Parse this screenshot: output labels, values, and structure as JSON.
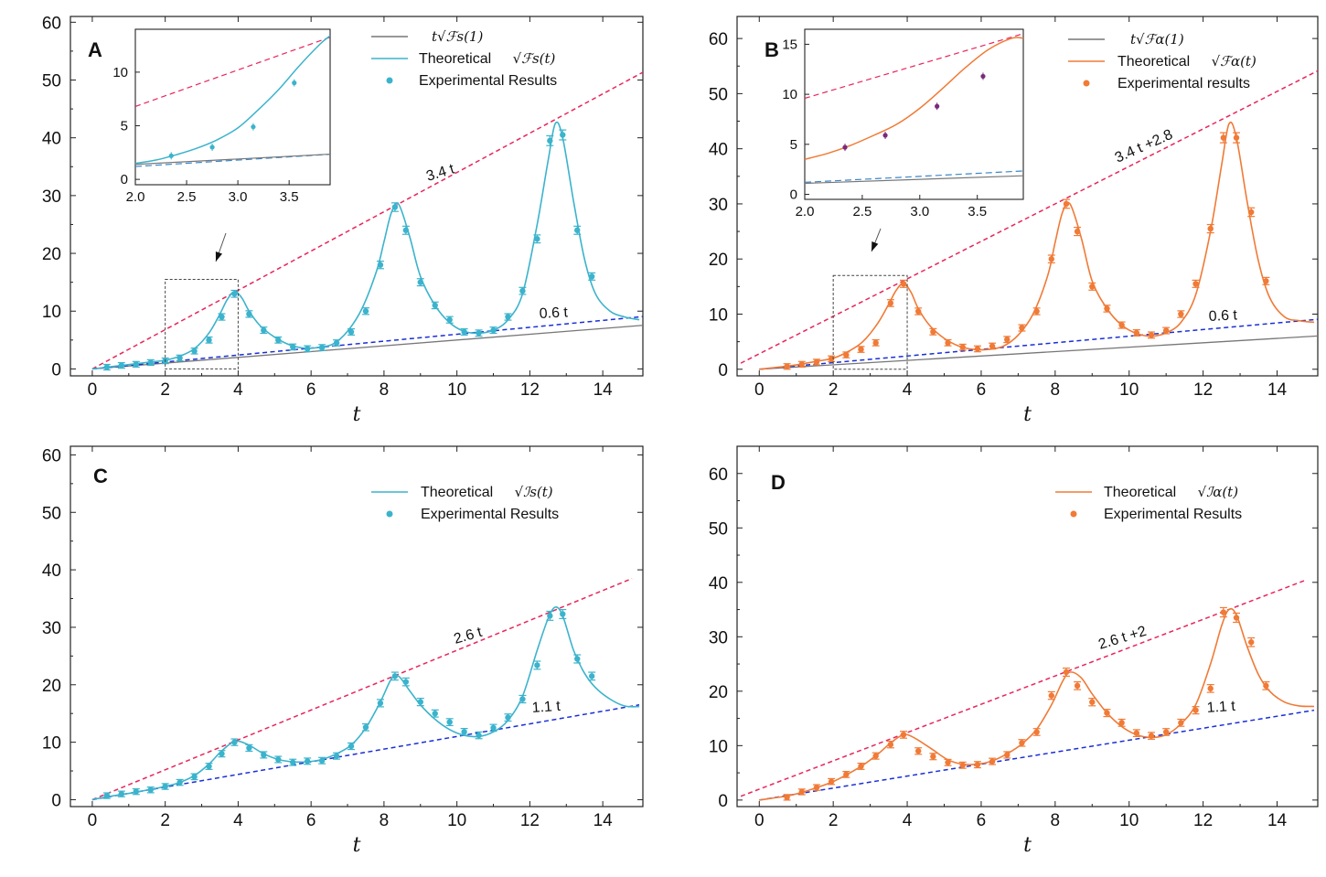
{
  "chart_data": [
    {
      "panel": "A",
      "type": "line",
      "xlabel": "t",
      "ylabel": "",
      "xlim": [
        -0.6,
        15.1
      ],
      "ylim": [
        -1.2,
        61
      ],
      "xticks": [
        0,
        2,
        4,
        6,
        8,
        10,
        12,
        14
      ],
      "yticks": [
        0,
        10,
        20,
        30,
        40,
        50,
        60
      ],
      "legend": [
        {
          "label": "",
          "math": "t√ℱs(1)",
          "style": "gray-line"
        },
        {
          "label": "Theoretical",
          "math": "√ℱs(t)",
          "style": "color-line"
        },
        {
          "label": "Experimental Results",
          "math": "",
          "style": "color-dot"
        }
      ],
      "theory_color": "#3bb3cc",
      "bounds": [
        {
          "label": "3.4 t",
          "slope": 3.4,
          "intercept": 0,
          "color": "#e8255b"
        },
        {
          "label": "0.6 t",
          "slope": 0.6,
          "intercept": 0,
          "color": "#1a2fd6"
        }
      ],
      "reference": {
        "slope": 0.5,
        "intercept": 0,
        "color": "#777777"
      },
      "theory": {
        "x": [
          0,
          0.4,
          0.8,
          1.2,
          1.6,
          2,
          2.4,
          2.8,
          3.2,
          3.5,
          3.7,
          3.9,
          4.1,
          4.3,
          4.6,
          5,
          5.4,
          5.8,
          6.2,
          6.6,
          7,
          7.4,
          7.8,
          8,
          8.2,
          8.4,
          8.7,
          9,
          9.4,
          9.8,
          10.2,
          10.6,
          11,
          11.4,
          11.8,
          12.2,
          12.5,
          12.7,
          12.9,
          13.2,
          13.5,
          13.8,
          14.2,
          14.6,
          15
        ],
        "y": [
          0,
          0.3,
          0.6,
          0.9,
          1.2,
          1.5,
          2.2,
          3.5,
          6.2,
          9.5,
          12,
          13.4,
          12.3,
          10,
          7.5,
          5.5,
          4.2,
          3.6,
          3.7,
          4.3,
          6.5,
          10.5,
          17,
          22,
          27,
          28.5,
          23,
          16,
          11,
          8,
          6.5,
          6.2,
          6.7,
          8.5,
          13,
          25,
          36,
          42.5,
          40,
          29,
          19,
          13,
          10,
          9,
          8.5
        ]
      },
      "points": {
        "x": [
          0.4,
          0.8,
          1.2,
          1.6,
          2,
          2.4,
          2.8,
          3.2,
          3.55,
          3.9,
          4.3,
          4.7,
          5.1,
          5.5,
          5.9,
          6.3,
          6.7,
          7.1,
          7.5,
          7.9,
          8.3,
          8.6,
          9,
          9.4,
          9.8,
          10.2,
          10.6,
          11,
          11.4,
          11.8,
          12.2,
          12.55,
          12.9,
          13.3,
          13.7
        ],
        "y": [
          0.3,
          0.6,
          0.8,
          1.1,
          1.4,
          1.9,
          3.1,
          5,
          9,
          13,
          9.5,
          6.7,
          5,
          3.8,
          3.5,
          3.7,
          4.5,
          6.4,
          10,
          18,
          28,
          24,
          15,
          11,
          8.5,
          6.4,
          6.2,
          6.7,
          9,
          13.5,
          22.5,
          39.5,
          40.5,
          24,
          16
        ]
      },
      "inset": {
        "xlim": [
          2.0,
          3.9
        ],
        "ylim": [
          -0.5,
          14
        ],
        "xticks": [
          2.0,
          2.5,
          3.0,
          3.5
        ],
        "yticks": [
          0,
          5,
          10
        ],
        "theory": {
          "x": [
            2.0,
            2.2,
            2.4,
            2.6,
            2.8,
            3.0,
            3.2,
            3.4,
            3.6,
            3.8,
            3.9
          ],
          "y": [
            1.5,
            1.8,
            2.3,
            2.9,
            3.7,
            4.8,
            6.5,
            8.4,
            10.6,
            12.6,
            13.4
          ]
        },
        "points": {
          "x": [
            2.35,
            2.75,
            3.15,
            3.55
          ],
          "y": [
            2.2,
            3.0,
            4.9,
            9.0
          ]
        },
        "bound_slope": 3.4,
        "bound_intercept": 0,
        "lower_slope": 0.6,
        "lower_intercept": 0,
        "ref_slope": 0.5,
        "ref_intercept": 0.4
      }
    },
    {
      "panel": "B",
      "type": "line",
      "xlabel": "t",
      "ylabel": "",
      "xlim": [
        -0.6,
        15.1
      ],
      "ylim": [
        -1.2,
        64
      ],
      "xticks": [
        0,
        2,
        4,
        6,
        8,
        10,
        12,
        14
      ],
      "yticks": [
        0,
        10,
        20,
        30,
        40,
        50,
        60
      ],
      "legend": [
        {
          "label": "",
          "math": "t√ℱα(1)",
          "style": "gray-line"
        },
        {
          "label": "Theoretical",
          "math": "√ℱα(t)",
          "style": "color-line"
        },
        {
          "label": "Experimental results",
          "math": "",
          "style": "color-dot"
        }
      ],
      "theory_color": "#f07a36",
      "bounds": [
        {
          "label": "3.4 t +2.8",
          "slope": 3.4,
          "intercept": 2.8,
          "color": "#e8255b"
        },
        {
          "label": "0.6 t",
          "slope": 0.6,
          "intercept": 0,
          "color": "#1a2fd6"
        }
      ],
      "reference": {
        "slope": 0.4,
        "intercept": 0,
        "color": "#777777"
      },
      "theory": {
        "x": [
          0,
          0.4,
          0.8,
          1.2,
          1.6,
          2,
          2.4,
          2.8,
          3.2,
          3.5,
          3.7,
          3.9,
          4.1,
          4.3,
          4.6,
          5,
          5.4,
          5.8,
          6.2,
          6.6,
          7,
          7.4,
          7.8,
          8,
          8.2,
          8.4,
          8.7,
          9,
          9.4,
          9.8,
          10.2,
          10.6,
          11,
          11.4,
          11.8,
          12.2,
          12.5,
          12.7,
          12.9,
          13.2,
          13.5,
          13.8,
          14.2,
          14.6,
          15
        ],
        "y": [
          0,
          0.3,
          0.6,
          1,
          1.5,
          2,
          3.2,
          5,
          8.3,
          11.8,
          14.3,
          15.6,
          14,
          11,
          8,
          5.6,
          4.2,
          3.6,
          3.6,
          4.2,
          6.2,
          10,
          17,
          23,
          28.5,
          30,
          24,
          16,
          11,
          8,
          6.5,
          6,
          6.6,
          8.5,
          13.5,
          25,
          37,
          44.5,
          42,
          30,
          19.5,
          13,
          9.5,
          8.8,
          8.5
        ]
      },
      "points": {
        "x": [
          0.75,
          1.15,
          1.55,
          1.95,
          2.35,
          2.75,
          3.15,
          3.55,
          3.9,
          4.3,
          4.7,
          5.1,
          5.5,
          5.9,
          6.3,
          6.7,
          7.1,
          7.5,
          7.9,
          8.3,
          8.6,
          9,
          9.4,
          9.8,
          10.2,
          10.6,
          11,
          11.4,
          11.8,
          12.2,
          12.55,
          12.9,
          13.3,
          13.7
        ],
        "y": [
          0.5,
          0.9,
          1.3,
          1.9,
          2.6,
          3.6,
          4.8,
          12,
          15.5,
          10.5,
          6.8,
          4.8,
          4,
          3.7,
          4.2,
          5.4,
          7.5,
          10.5,
          20,
          30,
          25,
          15,
          11,
          8,
          6.6,
          6.2,
          7,
          10,
          15.5,
          25.5,
          42,
          42,
          28.5,
          16
        ]
      },
      "inset": {
        "xlim": [
          2.0,
          3.9
        ],
        "ylim": [
          -0.5,
          16.5
        ],
        "xticks": [
          2.0,
          2.5,
          3.0,
          3.5
        ],
        "yticks": [
          0,
          5,
          10,
          15
        ],
        "theory": {
          "x": [
            2.0,
            2.2,
            2.4,
            2.6,
            2.8,
            3.0,
            3.2,
            3.4,
            3.6,
            3.8,
            3.9
          ],
          "y": [
            3.5,
            4.1,
            4.9,
            5.9,
            7.0,
            8.6,
            10.6,
            12.7,
            14.5,
            15.6,
            15.6
          ]
        },
        "points": {
          "x": [
            2.35,
            2.7,
            3.15,
            3.55
          ],
          "y": [
            4.7,
            5.9,
            8.8,
            11.8
          ]
        },
        "bound_slope": 3.4,
        "bound_intercept": 2.8,
        "lower_slope": 0.6,
        "lower_intercept": 0,
        "ref_slope": 0.4,
        "ref_intercept": 0.3
      }
    },
    {
      "panel": "C",
      "type": "line",
      "xlabel": "t",
      "ylabel": "",
      "xlim": [
        -0.6,
        15.1
      ],
      "ylim": [
        -1.2,
        61.5
      ],
      "xticks": [
        0,
        2,
        4,
        6,
        8,
        10,
        12,
        14
      ],
      "yticks": [
        0,
        10,
        20,
        30,
        40,
        50,
        60
      ],
      "legend": [
        {
          "label": "Theoretical",
          "math": "√ℐs(t)",
          "style": "color-line"
        },
        {
          "label": "Experimental Results",
          "math": "",
          "style": "color-dot"
        }
      ],
      "theory_color": "#3bb3cc",
      "bounds": [
        {
          "label": "2.6 t",
          "slope": 2.6,
          "intercept": 0,
          "color": "#e8255b"
        },
        {
          "label": "1.1 t",
          "slope": 1.1,
          "intercept": 0,
          "color": "#1a2fd6"
        }
      ],
      "reference": null,
      "theory": {
        "x": [
          0,
          0.4,
          0.8,
          1.2,
          1.6,
          2,
          2.4,
          2.8,
          3.2,
          3.5,
          3.8,
          4,
          4.3,
          4.7,
          5.1,
          5.5,
          5.9,
          6.3,
          6.7,
          7.1,
          7.5,
          7.9,
          8.2,
          8.4,
          8.7,
          9,
          9.4,
          9.8,
          10.2,
          10.6,
          11,
          11.4,
          11.8,
          12.2,
          12.5,
          12.7,
          12.9,
          13.2,
          13.5,
          13.8,
          14.2,
          14.6,
          15
        ],
        "y": [
          0,
          0.5,
          0.9,
          1.3,
          1.8,
          2.3,
          3,
          4.2,
          6.2,
          8.2,
          9.8,
          10.2,
          9.5,
          8,
          7,
          6.6,
          6.6,
          7,
          8,
          9.5,
          12.5,
          17,
          21,
          21.5,
          19,
          16.5,
          14,
          12.2,
          11.2,
          11,
          11.8,
          13.8,
          18,
          26,
          31.5,
          33.5,
          32,
          26,
          22,
          19.5,
          17.5,
          16.3,
          16.2
        ]
      },
      "points": {
        "x": [
          0.4,
          0.8,
          1.2,
          1.6,
          2,
          2.4,
          2.8,
          3.2,
          3.55,
          3.9,
          4.3,
          4.7,
          5.1,
          5.5,
          5.9,
          6.3,
          6.7,
          7.1,
          7.5,
          7.9,
          8.3,
          8.6,
          9,
          9.4,
          9.8,
          10.2,
          10.6,
          11,
          11.4,
          11.8,
          12.2,
          12.55,
          12.9,
          13.3,
          13.7
        ],
        "y": [
          0.7,
          1,
          1.4,
          1.7,
          2.3,
          3,
          4,
          5.8,
          8,
          10,
          9,
          7.8,
          7,
          6.5,
          6.7,
          6.8,
          7.6,
          9.3,
          12.6,
          16.8,
          21.5,
          20.5,
          17,
          15,
          13.5,
          11.8,
          11.2,
          12.5,
          14.3,
          17.5,
          23.4,
          32,
          32.3,
          24.5,
          21.5
        ]
      },
      "inset": null
    },
    {
      "panel": "D",
      "type": "line",
      "xlabel": "t",
      "ylabel": "",
      "xlim": [
        -0.6,
        15.1
      ],
      "ylim": [
        -1.2,
        65
      ],
      "xticks": [
        0,
        2,
        4,
        6,
        8,
        10,
        12,
        14
      ],
      "yticks": [
        0,
        10,
        20,
        30,
        40,
        50,
        60
      ],
      "legend": [
        {
          "label": "Theoretical",
          "math": "√ℐα(t)",
          "style": "color-line"
        },
        {
          "label": "Experimental Results",
          "math": "",
          "style": "color-dot"
        }
      ],
      "theory_color": "#f07a36",
      "bounds": [
        {
          "label": "2.6 t +2",
          "slope": 2.6,
          "intercept": 2,
          "color": "#e8255b"
        },
        {
          "label": "1.1 t",
          "slope": 1.1,
          "intercept": 0,
          "color": "#1a2fd6"
        }
      ],
      "reference": null,
      "theory": {
        "x": [
          0,
          0.4,
          0.8,
          1.2,
          1.6,
          2,
          2.4,
          2.8,
          3.2,
          3.5,
          3.8,
          4,
          4.3,
          4.7,
          5.1,
          5.5,
          5.9,
          6.3,
          6.7,
          7.1,
          7.5,
          7.9,
          8.2,
          8.4,
          8.7,
          9,
          9.4,
          9.8,
          10.2,
          10.6,
          11,
          11.4,
          11.8,
          12.2,
          12.5,
          12.7,
          12.9,
          13.2,
          13.5,
          13.8,
          14.2,
          14.6,
          15
        ],
        "y": [
          0,
          0.4,
          0.8,
          1.5,
          2.4,
          3.4,
          4.8,
          6.4,
          8.4,
          10.2,
          11.7,
          12,
          11,
          9.2,
          7.4,
          6.6,
          6.6,
          7.2,
          8.5,
          10.3,
          13,
          17.5,
          21.8,
          23.5,
          22.5,
          19.5,
          16,
          13.5,
          12,
          11.5,
          12,
          14,
          17.5,
          25,
          32,
          35,
          34,
          28,
          23,
          20,
          18,
          17.3,
          17.2
        ]
      },
      "points": {
        "x": [
          0.75,
          1.15,
          1.55,
          1.95,
          2.35,
          2.75,
          3.15,
          3.55,
          3.9,
          4.3,
          4.7,
          5.1,
          5.5,
          5.9,
          6.3,
          6.7,
          7.1,
          7.5,
          7.9,
          8.3,
          8.6,
          9,
          9.4,
          9.8,
          10.2,
          10.6,
          11,
          11.4,
          11.8,
          12.2,
          12.55,
          12.9,
          13.3,
          13.7
        ],
        "y": [
          0.5,
          1.5,
          2.3,
          3.4,
          4.7,
          6.2,
          8.1,
          10.2,
          12,
          9,
          8,
          6.9,
          6.4,
          6.5,
          7.1,
          8.3,
          10.5,
          12.5,
          19.2,
          23.5,
          21,
          18,
          16,
          14.2,
          12.3,
          11.8,
          12.5,
          14.2,
          16.5,
          20.5,
          34.5,
          33.5,
          29,
          21
        ]
      },
      "inset": null
    }
  ]
}
